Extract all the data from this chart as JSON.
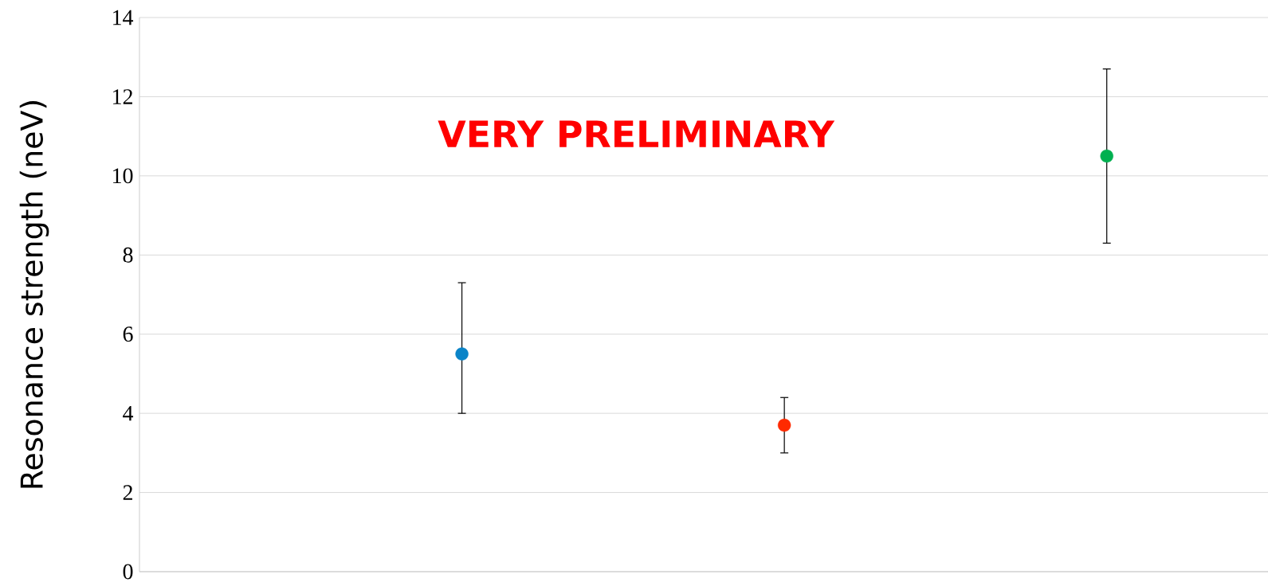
{
  "chart_data": {
    "type": "scatter",
    "ylabel": "Resonance strength (neV)",
    "categories": [
      null,
      null,
      null
    ],
    "values": [
      5.5,
      3.7,
      10.5
    ],
    "errors": [
      [
        4.0,
        7.3
      ],
      [
        3.0,
        4.4
      ],
      [
        8.3,
        12.7
      ]
    ],
    "colors": [
      "#0a84c8",
      "#ff2a00",
      "#00b050"
    ],
    "ylim": [
      0,
      14
    ],
    "yticks": [
      0,
      2,
      4,
      6,
      8,
      10,
      12,
      14
    ],
    "grid": "y",
    "marker": "circle",
    "tick_labels": "y",
    "annotations": [
      "VERY PRELIMINARY"
    ]
  }
}
